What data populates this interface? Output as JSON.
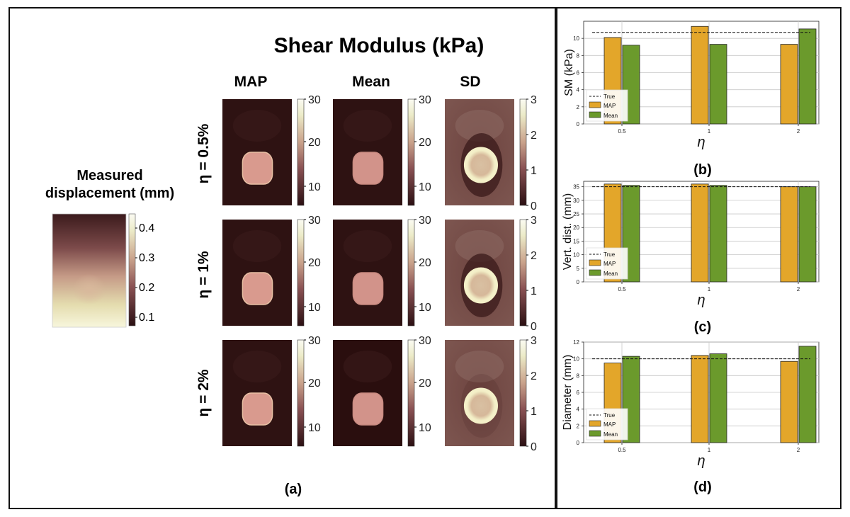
{
  "figure": {
    "main_title": "Shear Modulus (kPa)",
    "columns": [
      "MAP",
      "Mean",
      "SD"
    ],
    "rows": [
      "η = 0.5%",
      "η = 1%",
      "η = 2%"
    ],
    "colorbars": {
      "map_ticks": [
        "30",
        "20",
        "10"
      ],
      "sd_ticks": [
        "3",
        "2",
        "1",
        "0"
      ]
    },
    "measured_title_line1": "Measured",
    "measured_title_line2": "displacement (mm)",
    "measured_ticks": [
      "0.4",
      "0.3",
      "0.2",
      "0.1"
    ],
    "label_a": "(a)",
    "label_b": "(b)",
    "label_c": "(c)",
    "label_d": "(d)"
  },
  "colors": {
    "map": "#e3a62a",
    "mean": "#6b9a2c",
    "bar_edge": "#222222",
    "dark_bg": "#2e0f0f"
  },
  "chart_data": [
    {
      "type": "bar",
      "panel": "(b)",
      "categories": [
        "0.5",
        "1",
        "2"
      ],
      "series": [
        {
          "name": "MAP",
          "values": [
            10.1,
            11.4,
            9.3
          ]
        },
        {
          "name": "Mean",
          "values": [
            9.2,
            9.3,
            11.1
          ]
        }
      ],
      "true_value": 10.7,
      "legend": [
        "True",
        "MAP",
        "Mean"
      ],
      "xlabel": "η",
      "ylabel": "SM (kPa)",
      "ylim": [
        0,
        12
      ],
      "yticks": [
        "0",
        "2",
        "4",
        "6",
        "8",
        "10"
      ],
      "legend_position": "lower-left"
    },
    {
      "type": "bar",
      "panel": "(c)",
      "categories": [
        "0.5",
        "1",
        "2"
      ],
      "series": [
        {
          "name": "MAP",
          "values": [
            36.0,
            36.0,
            35.0
          ]
        },
        {
          "name": "Mean",
          "values": [
            35.5,
            35.5,
            35.0
          ]
        }
      ],
      "true_value": 35.0,
      "legend": [
        "True",
        "MAP",
        "Mean"
      ],
      "xlabel": "η",
      "ylabel": "Vert. dist. (mm)",
      "ylim": [
        0,
        37
      ],
      "yticks": [
        "0",
        "5",
        "10",
        "15",
        "20",
        "25",
        "30",
        "35"
      ],
      "legend_position": "lower-left"
    },
    {
      "type": "bar",
      "panel": "(d)",
      "categories": [
        "0.5",
        "1",
        "2"
      ],
      "series": [
        {
          "name": "MAP",
          "values": [
            9.5,
            10.4,
            9.7
          ]
        },
        {
          "name": "Mean",
          "values": [
            10.3,
            10.6,
            11.5
          ]
        }
      ],
      "true_value": 10.0,
      "legend": [
        "True",
        "MAP",
        "Mean"
      ],
      "xlabel": "η",
      "ylabel": "Diameter (mm)",
      "ylim": [
        0,
        12
      ],
      "yticks": [
        "0",
        "2",
        "4",
        "6",
        "8",
        "10",
        "12"
      ],
      "legend_position": "lower-left"
    }
  ]
}
